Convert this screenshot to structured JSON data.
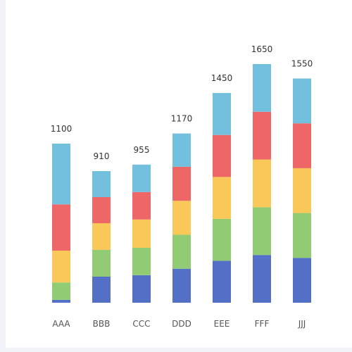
{
  "chart_data": {
    "type": "bar",
    "stacked": true,
    "categories": [
      "AAA",
      "BBB",
      "CCC",
      "DDD",
      "EEE",
      "FFF",
      "JJJ"
    ],
    "totals": [
      1100,
      910,
      955,
      1170,
      1450,
      1650,
      1550
    ],
    "series": [
      {
        "color": "#5470c6",
        "values": [
          20,
          180,
          190,
          235,
          290,
          330,
          310
        ]
      },
      {
        "color": "#91cc75",
        "values": [
          120,
          185,
          190,
          235,
          290,
          330,
          310
        ]
      },
      {
        "color": "#fac858",
        "values": [
          220,
          185,
          195,
          235,
          290,
          330,
          310
        ]
      },
      {
        "color": "#ee6666",
        "values": [
          320,
          180,
          190,
          235,
          290,
          330,
          310
        ]
      },
      {
        "color": "#73c0de",
        "values": [
          420,
          180,
          190,
          230,
          290,
          330,
          310
        ]
      }
    ],
    "ylim": [
      0,
      1650
    ],
    "grid": false,
    "legend": "none"
  }
}
